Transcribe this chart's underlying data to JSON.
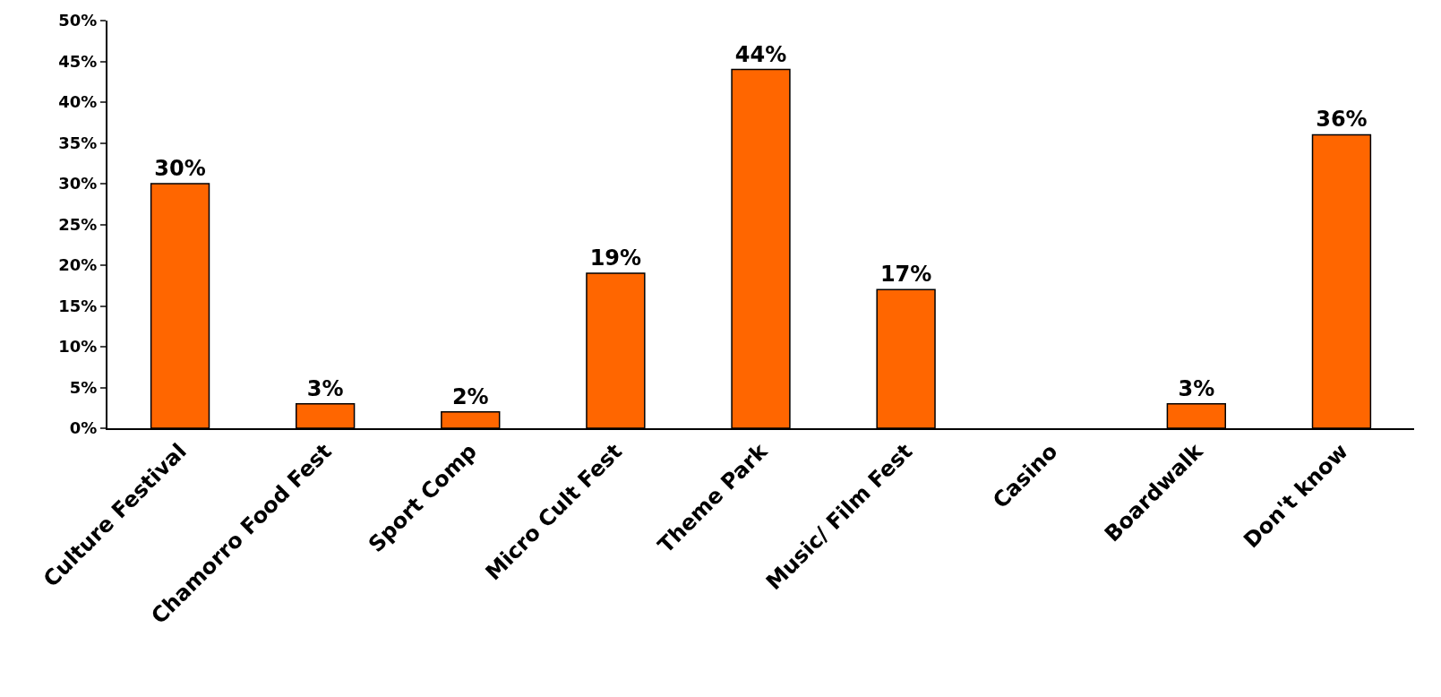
{
  "chart_data": {
    "type": "bar",
    "categories": [
      "Culture Festival",
      "Chamorro Food Fest",
      "Sport Comp",
      "Micro Cult Fest",
      "Theme Park",
      "Music/ Film Fest",
      "Casino",
      "Boardwalk",
      "Don't know"
    ],
    "values": [
      30,
      3,
      2,
      19,
      44,
      17,
      null,
      3,
      36
    ],
    "value_labels": [
      "30%",
      "3%",
      "2%",
      "19%",
      "44%",
      "17%",
      null,
      "3%",
      "36%"
    ],
    "color": "#ff6600",
    "yticks": [
      {
        "value": 0,
        "label": "0%"
      },
      {
        "value": 5,
        "label": "5%"
      },
      {
        "value": 10,
        "label": "10%"
      },
      {
        "value": 15,
        "label": "15%"
      },
      {
        "value": 20,
        "label": "20%"
      },
      {
        "value": 25,
        "label": "25%"
      },
      {
        "value": 30,
        "label": "30%"
      },
      {
        "value": 35,
        "label": "35%"
      },
      {
        "value": 40,
        "label": "40%"
      },
      {
        "value": 45,
        "label": "45%"
      },
      {
        "value": 50,
        "label": "50%"
      }
    ],
    "ylim": [
      0,
      50
    ]
  }
}
